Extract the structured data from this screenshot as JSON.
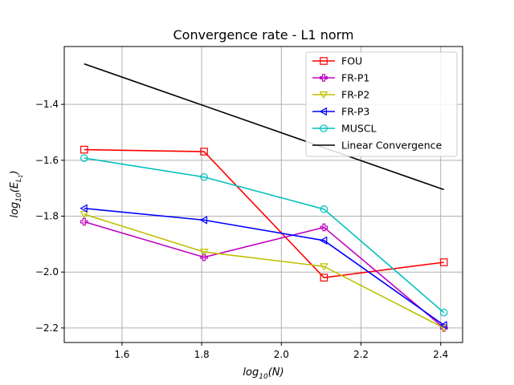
{
  "chart_data": {
    "type": "line",
    "title": "Convergence rate - L1 norm",
    "xlabel_main": "log",
    "xlabel_sub": "10",
    "xlabel_arg": "(N)",
    "ylabel_main": "log",
    "ylabel_sub": "10",
    "ylabel_arg_open": "(E",
    "ylabel_arg_sub": "L",
    "ylabel_arg_subsub": "1",
    "ylabel_arg_close": ")",
    "xlim": [
      1.455,
      2.455
    ],
    "ylim": [
      -2.252,
      -1.193
    ],
    "xticks": [
      1.6,
      1.8,
      2.0,
      2.2,
      2.4
    ],
    "xtick_labels": [
      "1.6",
      "1.8",
      "2.0",
      "2.2",
      "2.4"
    ],
    "yticks": [
      -2.2,
      -2.0,
      -1.8,
      -1.6,
      -1.4
    ],
    "ytick_labels": [
      "−2.2",
      "−2.0",
      "−1.8",
      "−1.6",
      "−1.4"
    ],
    "grid": true,
    "legend_position": "top-right",
    "series": [
      {
        "name": "FOU",
        "color": "#ff0000",
        "marker": "square",
        "x": [
          1.505,
          1.806,
          2.107,
          2.408
        ],
        "y": [
          -1.562,
          -1.569,
          -2.02,
          -1.965
        ]
      },
      {
        "name": "FR-P1",
        "color": "#bf00bf",
        "marker": "plus",
        "x": [
          1.505,
          1.806,
          2.107,
          2.408
        ],
        "y": [
          -1.82,
          -1.947,
          -1.84,
          -2.2
        ]
      },
      {
        "name": "FR-P2",
        "color": "#bfbf00",
        "marker": "triangle-down",
        "x": [
          1.505,
          1.806,
          2.107,
          2.408
        ],
        "y": [
          -1.793,
          -1.928,
          -1.98,
          -2.2
        ]
      },
      {
        "name": "FR-P3",
        "color": "#0000ff",
        "marker": "triangle-left",
        "x": [
          1.505,
          1.806,
          2.107,
          2.408
        ],
        "y": [
          -1.772,
          -1.814,
          -1.887,
          -2.19
        ]
      },
      {
        "name": "MUSCL",
        "color": "#00bfbf",
        "marker": "circle",
        "x": [
          1.505,
          1.806,
          2.107,
          2.408
        ],
        "y": [
          -1.592,
          -1.66,
          -1.775,
          -2.145
        ]
      },
      {
        "name": "Linear Convergence",
        "color": "#000000",
        "marker": "none",
        "x": [
          1.505,
          2.408
        ],
        "y": [
          -1.255,
          -1.705
        ]
      }
    ]
  }
}
